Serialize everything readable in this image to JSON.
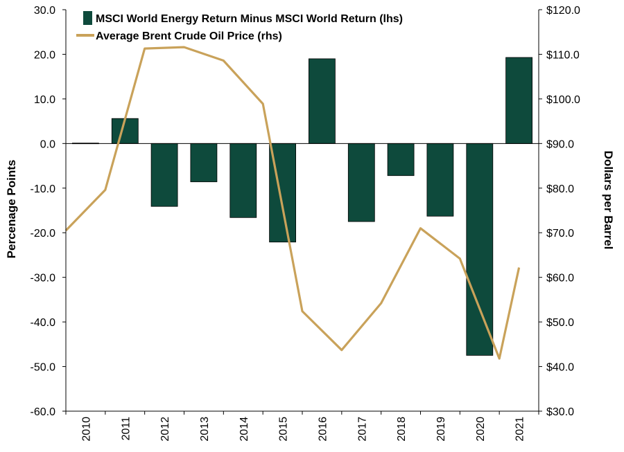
{
  "chart_data": {
    "type": "bar",
    "categories": [
      "2010",
      "2011",
      "2012",
      "2013",
      "2014",
      "2015",
      "2016",
      "2017",
      "2018",
      "2019",
      "2020",
      "2021"
    ],
    "series": [
      {
        "name": "MSCI World Energy Return Minus MSCI World Return (lhs)",
        "type": "bar",
        "axis": "left",
        "values": [
          0.1,
          5.6,
          -14.1,
          -8.6,
          -16.6,
          -22.1,
          19.0,
          -17.5,
          -7.2,
          -16.3,
          -47.5,
          19.3
        ]
      },
      {
        "name": "Average Brent Crude Oil Price (rhs)",
        "type": "line",
        "axis": "right",
        "values": [
          79.6,
          111.3,
          111.6,
          108.6,
          98.9,
          52.4,
          43.7,
          54.2,
          71.0,
          64.2,
          41.8,
          62.2
        ],
        "start_value": 70.5
      }
    ],
    "ylabel_left": "Percenage Points",
    "ylabel_right": "Dollars per Barrel",
    "ylim_left": [
      -60,
      30
    ],
    "ylim_right": [
      30,
      120
    ],
    "yticks_left": [
      "30.0",
      "20.0",
      "10.0",
      "0.0",
      "-10.0",
      "-20.0",
      "-30.0",
      "-40.0",
      "-50.0",
      "-60.0"
    ],
    "yticks_right": [
      "$120.0",
      "$110.0",
      "$100.0",
      "$90.0",
      "$80.0",
      "$70.0",
      "$60.0",
      "$50.0",
      "$40.0",
      "$30.0"
    ],
    "legend_position": "top-left",
    "grid": false,
    "colors": {
      "bar": "#0e4a3c",
      "line": "#c9a25a"
    }
  }
}
